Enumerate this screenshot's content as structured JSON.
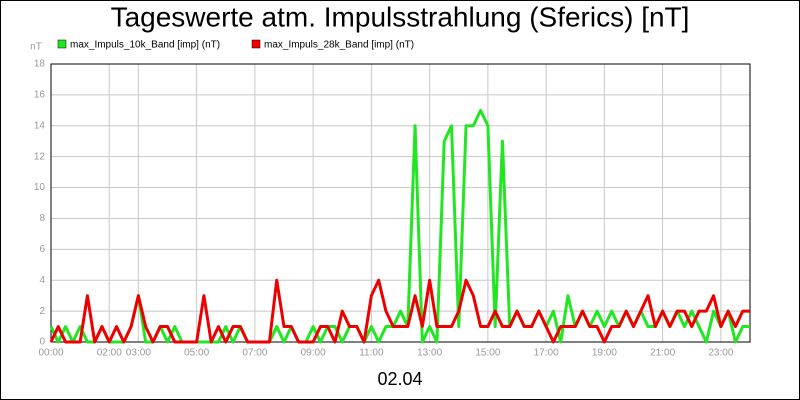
{
  "chart_data": {
    "type": "line",
    "title": "Tageswerte atm. Impulsstrahlung (Sferics) [nT]",
    "y_label": "nT",
    "x_label": "02.04",
    "x": [
      0,
      0.25,
      0.5,
      0.75,
      1,
      1.25,
      1.5,
      1.75,
      2,
      2.25,
      2.5,
      2.75,
      3,
      3.25,
      3.5,
      3.75,
      4,
      4.25,
      4.5,
      4.75,
      5,
      5.25,
      5.5,
      5.75,
      6,
      6.25,
      6.5,
      6.75,
      7,
      7.25,
      7.5,
      7.75,
      8,
      8.25,
      8.5,
      8.75,
      9,
      9.25,
      9.5,
      9.75,
      10,
      10.25,
      10.5,
      10.75,
      11,
      11.25,
      11.5,
      11.75,
      12,
      12.25,
      12.5,
      12.75,
      13,
      13.25,
      13.5,
      13.75,
      14,
      14.25,
      14.5,
      14.75,
      15,
      15.25,
      15.5,
      15.75,
      16,
      16.25,
      16.5,
      16.75,
      17,
      17.25,
      17.5,
      17.75,
      18,
      18.25,
      18.5,
      18.75,
      19,
      19.25,
      19.5,
      19.75,
      20,
      20.25,
      20.5,
      20.75,
      21,
      21.25,
      21.5,
      21.75,
      22,
      22.25,
      22.5,
      22.75,
      23,
      23.25,
      23.5,
      23.75,
      24
    ],
    "series": [
      {
        "name": "max_Impuls_10k_Band [imp] (nT)",
        "color": "#22e622",
        "values": [
          1,
          0,
          1,
          0,
          1,
          0,
          0,
          1,
          0,
          0,
          0,
          1,
          3,
          0,
          0,
          1,
          0,
          1,
          0,
          0,
          0,
          0,
          0,
          0,
          1,
          0,
          1,
          0,
          0,
          0,
          0,
          1,
          0,
          1,
          0,
          0,
          1,
          0,
          1,
          1,
          0,
          1,
          1,
          0,
          1,
          0,
          1,
          1,
          2,
          1,
          14,
          0,
          1,
          0,
          13,
          14,
          1,
          14,
          14,
          15,
          14,
          1,
          13,
          1,
          2,
          1,
          1,
          2,
          1,
          2,
          0,
          3,
          1,
          2,
          1,
          2,
          1,
          2,
          1,
          2,
          1,
          2,
          1,
          1,
          2,
          1,
          2,
          1,
          2,
          1,
          0,
          2,
          1,
          2,
          0,
          1,
          1
        ]
      },
      {
        "name": "max_Impuls_28k_Band [imp] (nT)",
        "color": "#ee0000",
        "values": [
          0,
          1,
          0,
          0,
          0,
          3,
          0,
          1,
          0,
          1,
          0,
          1,
          3,
          1,
          0,
          1,
          1,
          0,
          0,
          0,
          0,
          3,
          0,
          1,
          0,
          1,
          1,
          0,
          0,
          0,
          0,
          4,
          1,
          1,
          0,
          0,
          0,
          1,
          1,
          0,
          2,
          1,
          1,
          0,
          3,
          4,
          2,
          1,
          1,
          1,
          3,
          1,
          4,
          1,
          1,
          1,
          2,
          4,
          3,
          1,
          1,
          2,
          1,
          1,
          2,
          1,
          1,
          2,
          1,
          0,
          1,
          1,
          1,
          2,
          1,
          1,
          0,
          1,
          1,
          2,
          1,
          2,
          3,
          1,
          2,
          1,
          2,
          2,
          1,
          2,
          2,
          3,
          1,
          2,
          1,
          2,
          2
        ]
      }
    ],
    "xlim": [
      0,
      24
    ],
    "xticks": [
      {
        "value": 0,
        "label": "00:00"
      },
      {
        "value": 2,
        "label": "02:00"
      },
      {
        "value": 3,
        "label": "03:00"
      },
      {
        "value": 5,
        "label": "05:00"
      },
      {
        "value": 7,
        "label": "07:00"
      },
      {
        "value": 9,
        "label": "09:00"
      },
      {
        "value": 11,
        "label": "11:00"
      },
      {
        "value": 13,
        "label": "13:00"
      },
      {
        "value": 15,
        "label": "15:00"
      },
      {
        "value": 17,
        "label": "17:00"
      },
      {
        "value": 19,
        "label": "19:00"
      },
      {
        "value": 21,
        "label": "21:00"
      },
      {
        "value": 23,
        "label": "23:00"
      }
    ],
    "ylim": [
      0,
      18
    ],
    "yticks": [
      0,
      2,
      4,
      6,
      8,
      10,
      12,
      14,
      16,
      18
    ],
    "grid": true
  }
}
